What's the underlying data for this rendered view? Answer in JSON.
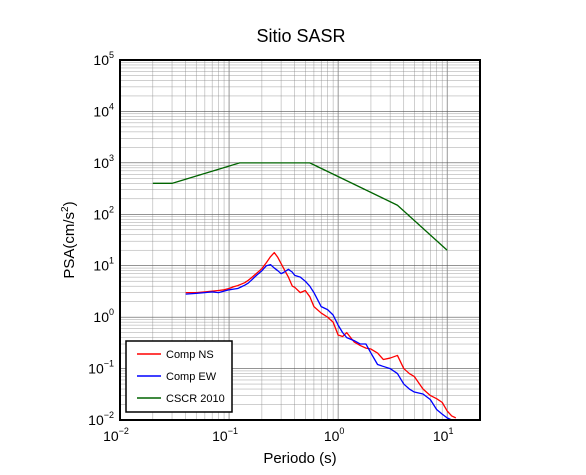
{
  "chart_data": {
    "type": "line",
    "title": "Sitio SASR",
    "xlabel": "Periodo (s)",
    "ylabel": "PSA(cm/s2)",
    "ylabel_base": "PSA(cm/s",
    "ylabel_sup": "2",
    "ylabel_end": ")",
    "x_scale": "log",
    "y_scale": "log",
    "xlim": [
      0.01,
      20
    ],
    "ylim": [
      0.01,
      100000
    ],
    "grid": true,
    "legend_position": "bottom-left",
    "x_ticks": [
      {
        "base": "10",
        "exp": "−2",
        "value": 0.01
      },
      {
        "base": "10",
        "exp": "−1",
        "value": 0.1
      },
      {
        "base": "10",
        "exp": "0",
        "value": 1
      },
      {
        "base": "10",
        "exp": "1",
        "value": 10
      }
    ],
    "y_ticks": [
      {
        "base": "10",
        "exp": "−2",
        "value": 0.01
      },
      {
        "base": "10",
        "exp": "−1",
        "value": 0.1
      },
      {
        "base": "10",
        "exp": "0",
        "value": 1
      },
      {
        "base": "10",
        "exp": "1",
        "value": 10
      },
      {
        "base": "10",
        "exp": "2",
        "value": 100
      },
      {
        "base": "10",
        "exp": "3",
        "value": 1000
      },
      {
        "base": "10",
        "exp": "4",
        "value": 10000
      },
      {
        "base": "10",
        "exp": "5",
        "value": 100000
      }
    ],
    "series": [
      {
        "name": "Comp NS",
        "color": "#ff0000",
        "x": [
          0.04,
          0.05,
          0.06,
          0.07,
          0.08,
          0.09,
          0.1,
          0.11,
          0.12,
          0.13,
          0.14,
          0.15,
          0.16,
          0.17,
          0.18,
          0.2,
          0.22,
          0.24,
          0.26,
          0.28,
          0.3,
          0.32,
          0.35,
          0.38,
          0.4,
          0.45,
          0.5,
          0.55,
          0.6,
          0.7,
          0.8,
          0.9,
          1.0,
          1.1,
          1.2,
          1.4,
          1.6,
          1.8,
          2.0,
          2.3,
          2.6,
          3.0,
          3.5,
          4.0,
          4.5,
          5.0,
          6.0,
          7.0,
          8.0,
          9.0,
          10.0,
          11.0,
          12.0
        ],
        "y": [
          3.0,
          3.0,
          3.1,
          3.2,
          3.3,
          3.4,
          3.6,
          3.9,
          4.1,
          4.4,
          4.7,
          5.2,
          5.8,
          6.5,
          7.2,
          8.8,
          11.5,
          15.0,
          18.0,
          14.5,
          11.0,
          8.5,
          6.0,
          4.0,
          3.8,
          3.0,
          3.3,
          2.5,
          1.6,
          1.2,
          1.0,
          0.8,
          0.45,
          0.42,
          0.5,
          0.33,
          0.28,
          0.25,
          0.24,
          0.2,
          0.15,
          0.16,
          0.18,
          0.1,
          0.08,
          0.07,
          0.04,
          0.03,
          0.026,
          0.022,
          0.015,
          0.012,
          0.011
        ]
      },
      {
        "name": "Comp EW",
        "color": "#0000ff",
        "x": [
          0.04,
          0.05,
          0.06,
          0.07,
          0.08,
          0.09,
          0.1,
          0.11,
          0.12,
          0.13,
          0.14,
          0.15,
          0.16,
          0.17,
          0.18,
          0.2,
          0.22,
          0.24,
          0.26,
          0.28,
          0.3,
          0.32,
          0.35,
          0.38,
          0.4,
          0.45,
          0.5,
          0.55,
          0.6,
          0.7,
          0.8,
          0.9,
          1.0,
          1.1,
          1.2,
          1.4,
          1.6,
          1.8,
          2.0,
          2.3,
          2.6,
          3.0,
          3.5,
          4.0,
          4.5,
          5.0,
          6.0,
          7.0,
          8.0,
          9.0,
          10.0,
          11.0
        ],
        "y": [
          2.8,
          2.9,
          3.0,
          3.1,
          3.0,
          3.2,
          3.4,
          3.5,
          3.6,
          3.9,
          4.2,
          4.6,
          5.2,
          5.9,
          6.6,
          8.0,
          10.0,
          10.5,
          9.0,
          8.0,
          7.0,
          7.5,
          8.5,
          7.5,
          6.5,
          6.0,
          5.0,
          4.0,
          3.0,
          1.6,
          1.4,
          1.1,
          0.7,
          0.5,
          0.4,
          0.35,
          0.3,
          0.3,
          0.2,
          0.12,
          0.11,
          0.1,
          0.08,
          0.05,
          0.04,
          0.035,
          0.032,
          0.025,
          0.016,
          0.013,
          0.011,
          0.01
        ]
      },
      {
        "name": "CSCR 2010",
        "color": "#006400",
        "x": [
          0.02,
          0.03,
          0.125,
          0.55,
          3.5,
          10.0
        ],
        "y": [
          400,
          400,
          1000,
          1000,
          150,
          20
        ]
      }
    ]
  }
}
